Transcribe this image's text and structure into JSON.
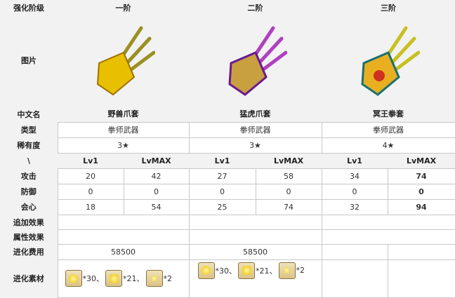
{
  "labels": {
    "stage": "强化阶级",
    "image": "图片",
    "name": "中文名",
    "type": "类型",
    "rarity": "稀有度",
    "level": "\\",
    "atk": "攻击",
    "def": "防御",
    "crit": "会心",
    "extra": "追加效果",
    "attr": "属性效果",
    "cost": "进化费用",
    "material": "进化素材"
  },
  "stages": [
    {
      "stage": "一阶",
      "name": "野兽爪套",
      "type": "拳师武器",
      "rarity": "3★",
      "lv1": "Lv1",
      "lvmax": "LvMAX",
      "atk": [
        "20",
        "42"
      ],
      "def": [
        "0",
        "0"
      ],
      "crit": [
        "18",
        "54"
      ],
      "cost": "58500",
      "color": "#e8c000",
      "mats": [
        "*30、",
        "*21、",
        "*2"
      ]
    },
    {
      "stage": "二阶",
      "name": "猛虎爪套",
      "type": "拳师武器",
      "rarity": "3★",
      "lv1": "Lv1",
      "lvmax": "LvMAX",
      "atk": [
        "27",
        "58"
      ],
      "def": [
        "0",
        "0"
      ],
      "crit": [
        "25",
        "74"
      ],
      "cost": "58500",
      "color": "#a020c0",
      "mats": [
        "*30、",
        "*21、",
        "*2"
      ]
    },
    {
      "stage": "三阶",
      "name": "冥王拳套",
      "type": "拳师武器",
      "rarity": "4★",
      "lv1": "Lv1",
      "lvmax": "LvMAX",
      "atk": [
        "34",
        "74"
      ],
      "def": [
        "0",
        "0"
      ],
      "crit": [
        "32",
        "94"
      ],
      "color": "#d03020"
    }
  ]
}
